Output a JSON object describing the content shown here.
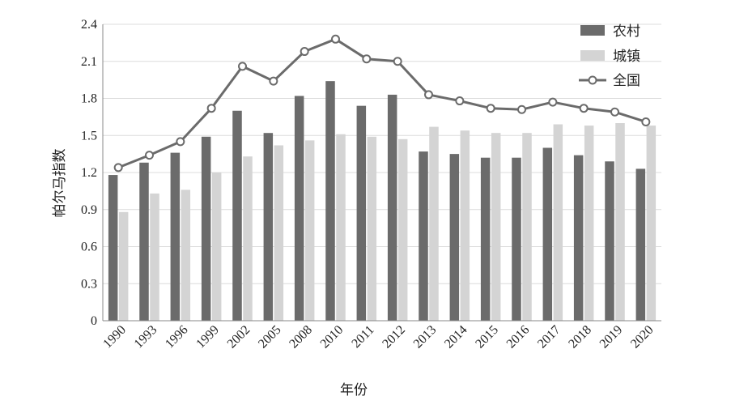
{
  "chart_data": {
    "type": "bar",
    "xlabel": "年份",
    "ylabel": "帕尔马指数",
    "ylim": [
      0,
      2.4
    ],
    "yticks": [
      "0",
      "0.3",
      "0.6",
      "0.9",
      "1.2",
      "1.5",
      "1.8",
      "2.1",
      "2.4"
    ],
    "categories": [
      "1990",
      "1993",
      "1996",
      "1999",
      "2002",
      "2005",
      "2008",
      "2010",
      "2011",
      "2012",
      "2013",
      "2014",
      "2015",
      "2016",
      "2017",
      "2018",
      "2019",
      "2020"
    ],
    "series": [
      {
        "name": "农村",
        "kind": "bar",
        "color": "#6b6b6b",
        "values": [
          1.18,
          1.28,
          1.36,
          1.49,
          1.7,
          1.52,
          1.82,
          1.94,
          1.74,
          1.83,
          1.37,
          1.35,
          1.32,
          1.32,
          1.4,
          1.34,
          1.29,
          1.23
        ]
      },
      {
        "name": "城镇",
        "kind": "bar",
        "color": "#d4d4d4",
        "values": [
          0.88,
          1.03,
          1.06,
          1.2,
          1.33,
          1.42,
          1.46,
          1.51,
          1.49,
          1.47,
          1.57,
          1.54,
          1.52,
          1.52,
          1.59,
          1.58,
          1.6,
          1.58
        ]
      },
      {
        "name": "全国",
        "kind": "line",
        "color": "#6b6b6b",
        "values": [
          1.24,
          1.34,
          1.45,
          1.72,
          2.06,
          1.94,
          2.18,
          2.28,
          2.12,
          2.1,
          1.83,
          1.78,
          1.72,
          1.71,
          1.77,
          1.72,
          1.69,
          1.61
        ]
      }
    ],
    "grid": true,
    "legend_position": "top-right"
  }
}
